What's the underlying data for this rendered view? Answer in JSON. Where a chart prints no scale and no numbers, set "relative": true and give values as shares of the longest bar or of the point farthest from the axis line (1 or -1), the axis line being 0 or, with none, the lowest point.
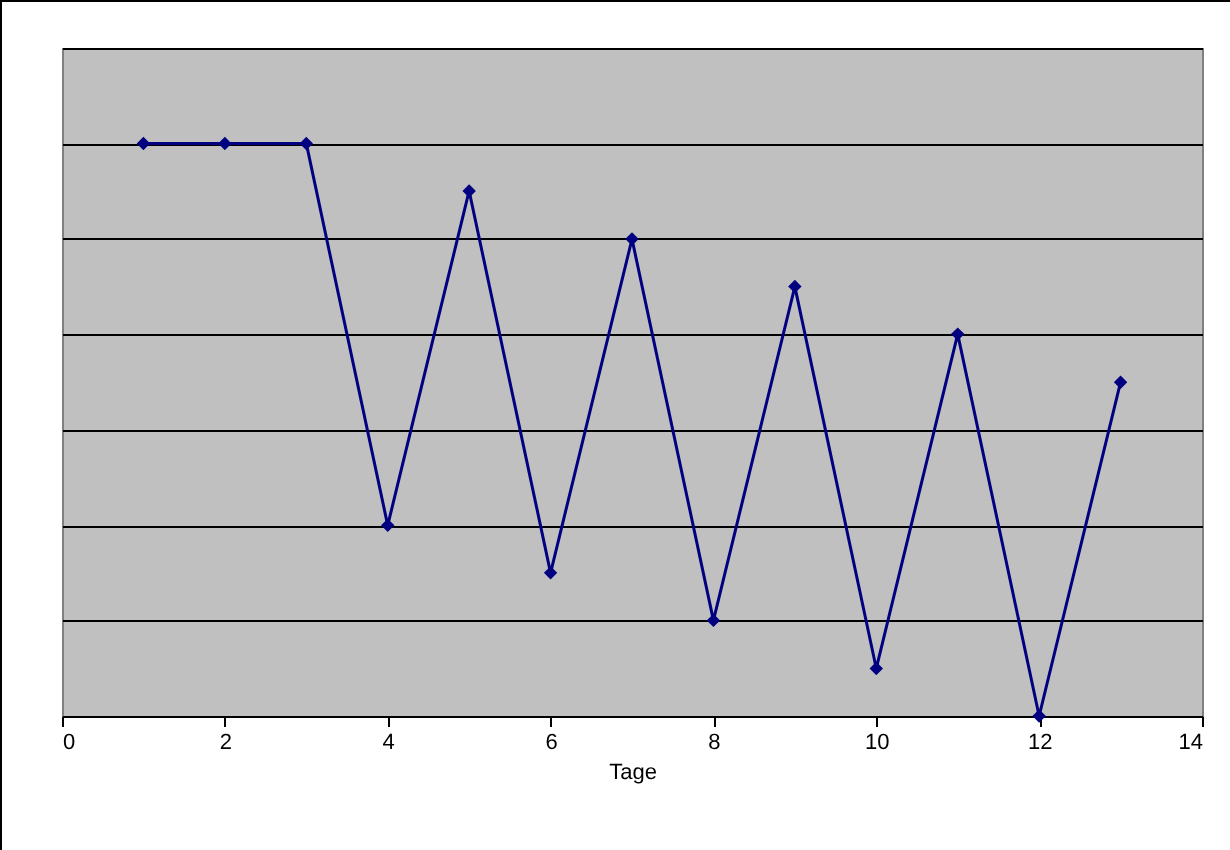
{
  "chart_data": {
    "type": "line",
    "relative": true,
    "xlabel": "Tage",
    "x": [
      1,
      2,
      3,
      4,
      5,
      6,
      7,
      8,
      9,
      10,
      11,
      12,
      13
    ],
    "series": [
      {
        "color": "#000080",
        "values": [
          1,
          1,
          1,
          0.333,
          0.917,
          0.25,
          0.833,
          0.167,
          0.75,
          0.083,
          0.667,
          0,
          0.583
        ]
      }
    ],
    "xlim": [
      0,
      14
    ],
    "xticks": [
      0,
      2,
      4,
      6,
      8,
      10,
      12,
      14
    ],
    "grid": "y",
    "marker": "diamond",
    "line_style": "solid"
  }
}
